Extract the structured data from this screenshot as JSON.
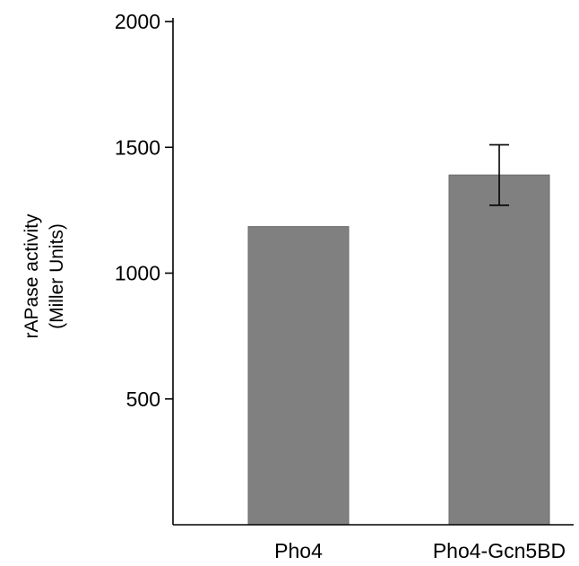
{
  "chart_data": {
    "type": "bar",
    "categories": [
      "Pho4",
      "Pho4-Gcn5BD"
    ],
    "values": [
      1185,
      1390
    ],
    "error": [
      null,
      120
    ],
    "ylabel_lines": [
      "rAPase activity",
      "(Miller Units)"
    ],
    "xlabel": "",
    "title": "",
    "ylim": [
      0,
      2000
    ],
    "yticks": [
      500,
      1000,
      1500,
      2000
    ],
    "ytick_labels": [
      "500",
      "1000",
      "1500",
      "2000"
    ],
    "grid": false,
    "legend": "none",
    "bar_color": "#808080",
    "bar_edge_color": "#6b6b6b"
  }
}
